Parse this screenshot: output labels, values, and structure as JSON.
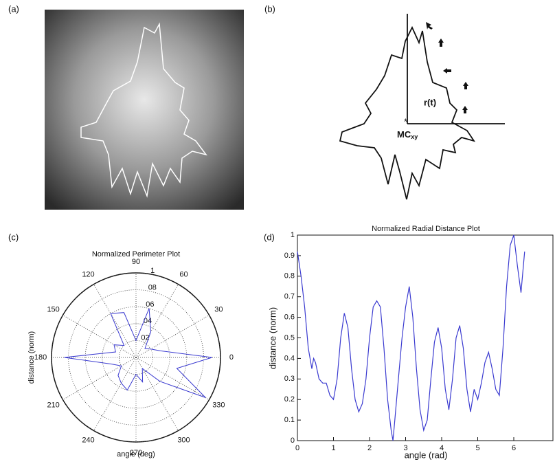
{
  "panels": {
    "a": {
      "label": "(a)"
    },
    "b": {
      "label": "(b)",
      "radius_label": "r(t)",
      "center_label": "MC",
      "center_subscript": "xy"
    }
  },
  "chart_data": [
    {
      "type": "polar",
      "label": "(c)",
      "title": "Normalized Perimeter Plot",
      "xlabel": "angle (deg)",
      "ylabel": "distance (norm)",
      "theta": [
        0,
        15,
        30,
        45,
        60,
        75,
        90,
        105,
        120,
        135,
        150,
        165,
        180,
        195,
        210,
        225,
        240,
        255,
        270,
        285,
        300,
        315,
        330,
        345,
        360
      ],
      "values": [
        0.9,
        0.3,
        0.2,
        0.15,
        0.35,
        0.6,
        0.2,
        0.55,
        0.6,
        0.2,
        0.3,
        0.25,
        0.85,
        0.3,
        0.2,
        0.3,
        0.35,
        0.4,
        0.2,
        0.3,
        0.15,
        0.4,
        0.95,
        0.5,
        0.9
      ],
      "color": "#3a3ad0",
      "rlim": [
        0,
        1
      ],
      "rticks": [
        {
          "value": 0.2,
          "label": "02"
        },
        {
          "value": 0.4,
          "label": "04"
        },
        {
          "value": 0.6,
          "label": "06"
        },
        {
          "value": 0.8,
          "label": "08"
        },
        1
      ],
      "thetaticks": [
        0,
        30,
        60,
        90,
        120,
        150,
        180,
        210,
        240,
        270,
        300,
        330
      ],
      "grid": true
    },
    {
      "type": "line",
      "label": "(d)",
      "title": "Normalized Radial Distance Plot",
      "xlabel": "angle (rad)",
      "ylabel": "distance (norm)",
      "x": [
        0,
        0.1,
        0.2,
        0.3,
        0.4,
        0.45,
        0.5,
        0.6,
        0.7,
        0.8,
        0.9,
        1.0,
        1.1,
        1.2,
        1.3,
        1.4,
        1.5,
        1.6,
        1.7,
        1.8,
        1.9,
        2.0,
        2.1,
        2.2,
        2.3,
        2.4,
        2.5,
        2.6,
        2.65,
        2.7,
        2.8,
        2.9,
        3.0,
        3.1,
        3.2,
        3.3,
        3.4,
        3.5,
        3.6,
        3.7,
        3.8,
        3.9,
        4.0,
        4.1,
        4.2,
        4.3,
        4.4,
        4.5,
        4.6,
        4.7,
        4.8,
        4.9,
        5.0,
        5.1,
        5.2,
        5.3,
        5.4,
        5.5,
        5.6,
        5.7,
        5.8,
        5.9,
        6.0,
        6.1,
        6.2,
        6.3
      ],
      "values": [
        0.92,
        0.8,
        0.65,
        0.45,
        0.35,
        0.4,
        0.38,
        0.3,
        0.28,
        0.28,
        0.22,
        0.2,
        0.3,
        0.5,
        0.62,
        0.55,
        0.35,
        0.2,
        0.14,
        0.18,
        0.3,
        0.5,
        0.65,
        0.68,
        0.65,
        0.45,
        0.2,
        0.05,
        0.0,
        0.1,
        0.3,
        0.5,
        0.65,
        0.75,
        0.6,
        0.35,
        0.15,
        0.05,
        0.1,
        0.3,
        0.48,
        0.55,
        0.45,
        0.25,
        0.15,
        0.3,
        0.5,
        0.56,
        0.45,
        0.25,
        0.14,
        0.25,
        0.2,
        0.28,
        0.38,
        0.43,
        0.35,
        0.25,
        0.22,
        0.45,
        0.75,
        0.95,
        1.0,
        0.85,
        0.72,
        0.92
      ],
      "color": "#3a3ad0",
      "xlim": [
        0,
        7
      ],
      "ylim": [
        0,
        1
      ],
      "xticks": [
        0,
        1,
        2,
        3,
        4,
        5,
        6
      ],
      "yticks": [
        0,
        0.1,
        0.2,
        0.3,
        0.4,
        0.5,
        0.6,
        0.7,
        0.8,
        0.9,
        1
      ]
    }
  ]
}
